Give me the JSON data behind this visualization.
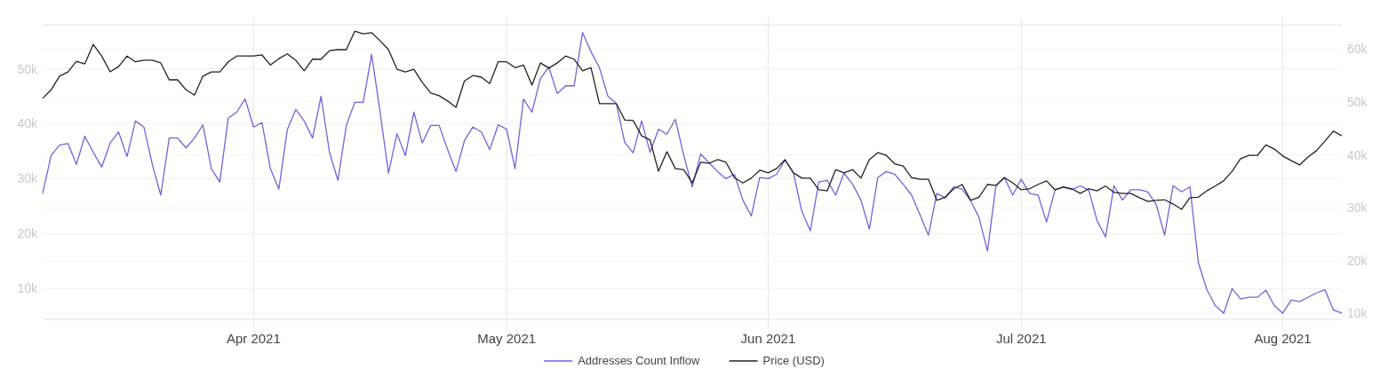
{
  "chart_data": {
    "type": "line",
    "x": [
      "2021-03-07",
      "2021-03-08",
      "2021-03-09",
      "2021-03-10",
      "2021-03-11",
      "2021-03-12",
      "2021-03-13",
      "2021-03-14",
      "2021-03-15",
      "2021-03-16",
      "2021-03-17",
      "2021-03-18",
      "2021-03-19",
      "2021-03-20",
      "2021-03-21",
      "2021-03-22",
      "2021-03-23",
      "2021-03-24",
      "2021-03-25",
      "2021-03-26",
      "2021-03-27",
      "2021-03-28",
      "2021-03-29",
      "2021-03-30",
      "2021-03-31",
      "2021-04-01",
      "2021-04-02",
      "2021-04-03",
      "2021-04-04",
      "2021-04-05",
      "2021-04-06",
      "2021-04-07",
      "2021-04-08",
      "2021-04-09",
      "2021-04-10",
      "2021-04-11",
      "2021-04-12",
      "2021-04-13",
      "2021-04-14",
      "2021-04-15",
      "2021-04-16",
      "2021-04-17",
      "2021-04-18",
      "2021-04-19",
      "2021-04-20",
      "2021-04-21",
      "2021-04-22",
      "2021-04-23",
      "2021-04-24",
      "2021-04-25",
      "2021-04-26",
      "2021-04-27",
      "2021-04-28",
      "2021-04-29",
      "2021-04-30",
      "2021-05-01",
      "2021-05-02",
      "2021-05-03",
      "2021-05-04",
      "2021-05-05",
      "2021-05-06",
      "2021-05-07",
      "2021-05-08",
      "2021-05-09",
      "2021-05-10",
      "2021-05-11",
      "2021-05-12",
      "2021-05-13",
      "2021-05-14",
      "2021-05-15",
      "2021-05-16",
      "2021-05-17",
      "2021-05-18",
      "2021-05-19",
      "2021-05-20",
      "2021-05-21",
      "2021-05-22",
      "2021-05-23",
      "2021-05-24",
      "2021-05-25",
      "2021-05-26",
      "2021-05-27",
      "2021-05-28",
      "2021-05-29",
      "2021-05-30",
      "2021-05-31",
      "2021-06-01",
      "2021-06-02",
      "2021-06-03",
      "2021-06-04",
      "2021-06-05",
      "2021-06-06",
      "2021-06-07",
      "2021-06-08",
      "2021-06-09",
      "2021-06-10",
      "2021-06-11",
      "2021-06-12",
      "2021-06-13",
      "2021-06-14",
      "2021-06-15",
      "2021-06-16",
      "2021-06-17",
      "2021-06-18",
      "2021-06-19",
      "2021-06-20",
      "2021-06-21",
      "2021-06-22",
      "2021-06-23",
      "2021-06-24",
      "2021-06-25",
      "2021-06-26",
      "2021-06-27",
      "2021-06-28",
      "2021-06-29",
      "2021-06-30",
      "2021-07-01",
      "2021-07-02",
      "2021-07-03",
      "2021-07-04",
      "2021-07-05",
      "2021-07-06",
      "2021-07-07",
      "2021-07-08",
      "2021-07-09",
      "2021-07-10",
      "2021-07-11",
      "2021-07-12",
      "2021-07-13",
      "2021-07-14",
      "2021-07-15",
      "2021-07-16",
      "2021-07-17",
      "2021-07-18",
      "2021-07-19",
      "2021-07-20",
      "2021-07-21",
      "2021-07-22",
      "2021-07-23",
      "2021-07-24",
      "2021-07-25",
      "2021-07-26",
      "2021-07-27",
      "2021-07-28",
      "2021-07-29",
      "2021-07-30",
      "2021-07-31",
      "2021-08-01",
      "2021-08-02",
      "2021-08-03",
      "2021-08-04",
      "2021-08-05",
      "2021-08-06",
      "2021-08-07",
      "2021-08-08"
    ],
    "series": [
      {
        "name": "Addresses Count Inflow",
        "color": "#6f63d9",
        "values": [
          27300,
          34200,
          36100,
          36400,
          32600,
          37700,
          34800,
          32100,
          36500,
          38500,
          34000,
          40500,
          39400,
          32600,
          27000,
          37400,
          37400,
          35600,
          37400,
          39800,
          31800,
          29400,
          41000,
          42100,
          44500,
          39400,
          40200,
          31800,
          28100,
          38900,
          42600,
          40500,
          37400,
          45000,
          34800,
          29700,
          39700,
          43900,
          43900,
          52600,
          42100,
          31000,
          38200,
          34200,
          42100,
          36500,
          39700,
          39700,
          35300,
          31300,
          36900,
          39400,
          38500,
          35300,
          39800,
          39000,
          31800,
          44500,
          42100,
          48200,
          50300,
          45500,
          46900,
          46900,
          56600,
          53100,
          50200,
          45000,
          43700,
          36600,
          34700,
          40500,
          34800,
          39000,
          38100,
          40800,
          34200,
          28500,
          34500,
          32900,
          31300,
          30000,
          30800,
          26100,
          23200,
          30200,
          30000,
          30800,
          33400,
          31000,
          24000,
          20500,
          29400,
          29700,
          27000,
          31000,
          29000,
          26100,
          20800,
          30200,
          31300,
          30800,
          29000,
          27000,
          23400,
          19700,
          27300,
          26500,
          28500,
          28100,
          26000,
          22900,
          16800,
          28700,
          30200,
          27000,
          29900,
          27300,
          27000,
          22100,
          27900,
          28500,
          28000,
          28700,
          27900,
          22300,
          19400,
          28700,
          26100,
          28000,
          28000,
          27600,
          25300,
          19700,
          28700,
          27600,
          28500,
          14700,
          9800,
          6900,
          5500,
          10000,
          8100,
          8400,
          8400,
          9700,
          6900,
          5500,
          7900,
          7600,
          8400,
          9200,
          9800,
          6100,
          5500
        ]
      },
      {
        "name": "Price (USD)",
        "color": "#222222",
        "axis": "y2",
        "values": [
          50700,
          52300,
          54900,
          55700,
          57700,
          57200,
          60900,
          58700,
          55700,
          56700,
          58700,
          57600,
          57900,
          57900,
          57400,
          54200,
          54200,
          52300,
          51300,
          54900,
          55700,
          55700,
          57600,
          58700,
          58700,
          58700,
          58900,
          57000,
          58200,
          59100,
          57900,
          55900,
          58100,
          58100,
          59700,
          59900,
          59900,
          63400,
          62900,
          63100,
          61600,
          59900,
          56200,
          55700,
          56200,
          53700,
          51700,
          51200,
          50200,
          49000,
          54000,
          55000,
          54700,
          53500,
          57600,
          57600,
          56500,
          57000,
          53200,
          57400,
          56400,
          57400,
          58700,
          58100,
          55900,
          56500,
          49700,
          49700,
          49700,
          46600,
          46500,
          43600,
          42800,
          36900,
          40600,
          37400,
          37200,
          34700,
          38600,
          38400,
          39100,
          38600,
          35700,
          34700,
          35600,
          37100,
          36600,
          37400,
          39100,
          36600,
          35600,
          35600,
          33400,
          33200,
          37200,
          36600,
          37200,
          35600,
          39100,
          40400,
          39900,
          38300,
          37900,
          35700,
          35400,
          35400,
          31400,
          32000,
          33600,
          34400,
          31400,
          32000,
          34400,
          34200,
          35700,
          34700,
          33400,
          33600,
          34400,
          35100,
          33400,
          33900,
          33600,
          32700,
          33600,
          33200,
          34100,
          32900,
          32700,
          32700,
          31900,
          31200,
          31400,
          31500,
          30700,
          29700,
          31900,
          32000,
          33200,
          34100,
          35100,
          36900,
          39300,
          39900,
          39900,
          41900,
          41100,
          39800,
          38900,
          38100,
          39600,
          40800,
          42600,
          44500,
          43600
        ]
      }
    ],
    "xlim": [
      "2021-03-07",
      "2021-08-08"
    ],
    "xticks": [
      {
        "value": "2021-04-01",
        "label": "Apr 2021"
      },
      {
        "value": "2021-05-01",
        "label": "May 2021"
      },
      {
        "value": "2021-06-01",
        "label": "Jun 2021"
      },
      {
        "value": "2021-07-01",
        "label": "Jul 2021"
      },
      {
        "value": "2021-08-01",
        "label": "Aug 2021"
      }
    ],
    "ylim": [
      4400,
      58000
    ],
    "yticks": [
      {
        "value": 10000,
        "label": "10k"
      },
      {
        "value": 20000,
        "label": "20k"
      },
      {
        "value": 30000,
        "label": "30k"
      },
      {
        "value": 40000,
        "label": "40k"
      },
      {
        "value": 50000,
        "label": "50k"
      }
    ],
    "y2lim": [
      8900,
      64600
    ],
    "y2ticks": [
      {
        "value": 10000,
        "label": "10k"
      },
      {
        "value": 20000,
        "label": "20k"
      },
      {
        "value": 30000,
        "label": "30k"
      },
      {
        "value": 40000,
        "label": "40k"
      },
      {
        "value": 50000,
        "label": "50k"
      },
      {
        "value": 60000,
        "label": "60k"
      }
    ],
    "grid": true,
    "legend": "bottom",
    "marker": "none"
  }
}
